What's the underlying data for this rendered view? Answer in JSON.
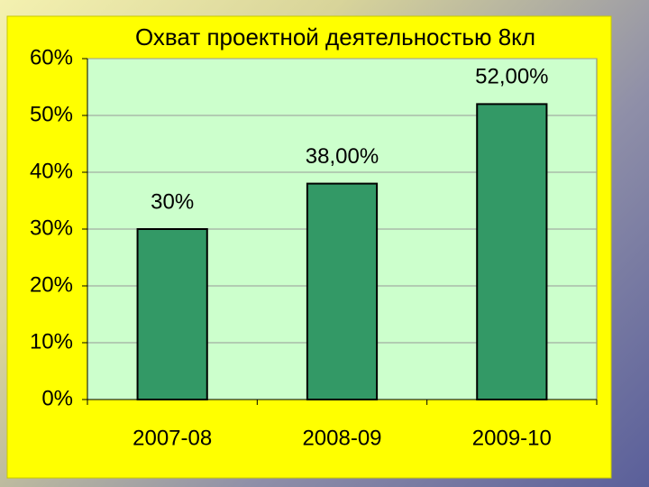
{
  "chart_data": {
    "type": "bar",
    "title": "Охват проектной деятельностью 8кл",
    "categories": [
      "2007-08",
      "2008-09",
      "2009-10"
    ],
    "values": [
      30,
      38,
      52
    ],
    "value_labels": [
      "30%",
      "38,00%",
      "52,00%"
    ],
    "color": "#339966",
    "ylim": [
      0,
      60
    ],
    "yticks": [
      {
        "value": 0,
        "label": "0%"
      },
      {
        "value": 10,
        "label": "10%"
      },
      {
        "value": 20,
        "label": "20%"
      },
      {
        "value": 30,
        "label": "30%"
      },
      {
        "value": 40,
        "label": "40%"
      },
      {
        "value": 50,
        "label": "50%"
      },
      {
        "value": 60,
        "label": "60%"
      }
    ],
    "grid": true
  }
}
